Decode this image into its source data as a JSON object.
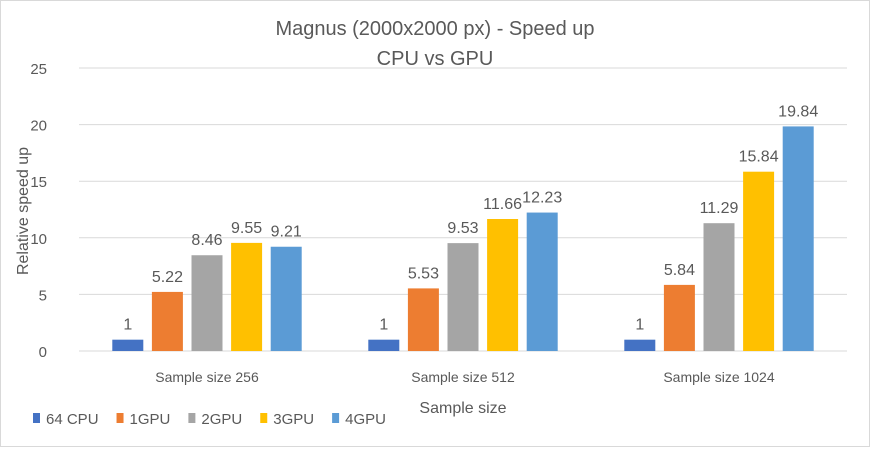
{
  "chart_data": {
    "type": "bar",
    "title": "Magnus (2000x2000 px) - Speed up",
    "subtitle": "CPU vs GPU",
    "xlabel": "Sample size",
    "ylabel": "Relative speed up",
    "ylim": [
      0,
      25
    ],
    "yticks": [
      0,
      5,
      10,
      15,
      20,
      25
    ],
    "grid": true,
    "legend_position": "bottom-left",
    "categories": [
      "Sample size 256",
      "Sample size 512",
      "Sample size 1024"
    ],
    "series": [
      {
        "name": "64 CPU",
        "color": "#4472c4",
        "values": [
          1,
          1,
          1
        ]
      },
      {
        "name": "1GPU",
        "color": "#ed7d31",
        "values": [
          5.22,
          5.53,
          5.84
        ]
      },
      {
        "name": "2GPU",
        "color": "#a5a5a5",
        "values": [
          8.46,
          9.53,
          11.29
        ]
      },
      {
        "name": "3GPU",
        "color": "#ffc000",
        "values": [
          9.55,
          11.66,
          15.84
        ]
      },
      {
        "name": "4GPU",
        "color": "#5b9bd5",
        "values": [
          9.21,
          12.23,
          19.84
        ]
      }
    ]
  }
}
